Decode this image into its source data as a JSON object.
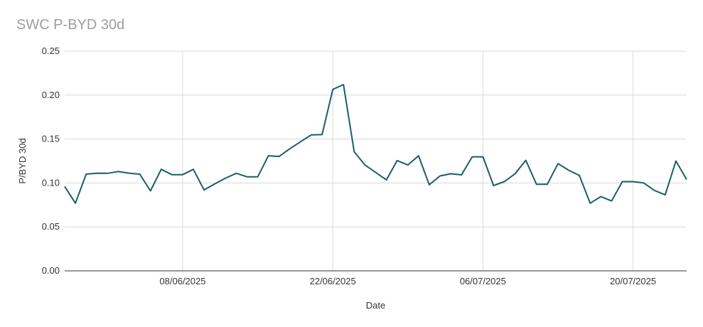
{
  "chart_data": {
    "type": "line",
    "title": "SWC P-BYD 30d",
    "xlabel": "Date",
    "ylabel": "P/BYD 30d",
    "ylim": [
      0,
      0.25
    ],
    "yticks": [
      "0.00",
      "0.05",
      "0.10",
      "0.15",
      "0.20",
      "0.25"
    ],
    "xticks": [
      "08/06/2025",
      "22/06/2025",
      "06/07/2025",
      "20/07/2025"
    ],
    "grid": true,
    "line_color": "#1a5e66",
    "series": [
      {
        "x": [
          "2025-05-28",
          "2025-05-29",
          "2025-05-30",
          "2025-05-31",
          "2025-06-01",
          "2025-06-02",
          "2025-06-03",
          "2025-06-04",
          "2025-06-05",
          "2025-06-06",
          "2025-06-07",
          "2025-06-08",
          "2025-06-09",
          "2025-06-10",
          "2025-06-11",
          "2025-06-12",
          "2025-06-13",
          "2025-06-14",
          "2025-06-15",
          "2025-06-16",
          "2025-06-17",
          "2025-06-18",
          "2025-06-19",
          "2025-06-20",
          "2025-06-21",
          "2025-06-22",
          "2025-06-23",
          "2025-06-24",
          "2025-06-25",
          "2025-06-27",
          "2025-06-28",
          "2025-06-29",
          "2025-06-30",
          "2025-07-01",
          "2025-07-02",
          "2025-07-03",
          "2025-07-04",
          "2025-07-05",
          "2025-07-06",
          "2025-07-07",
          "2025-07-08",
          "2025-07-09",
          "2025-07-10",
          "2025-07-11",
          "2025-07-12",
          "2025-07-13",
          "2025-07-14",
          "2025-07-15",
          "2025-07-16",
          "2025-07-17",
          "2025-07-18",
          "2025-07-19",
          "2025-07-20",
          "2025-07-21",
          "2025-07-22",
          "2025-07-23",
          "2025-07-24",
          "2025-07-25"
        ],
        "values": [
          0.096,
          0.077,
          0.11,
          0.1112,
          0.111,
          0.113,
          0.1112,
          0.11,
          0.091,
          0.1155,
          0.1095,
          0.1095,
          0.1155,
          0.092,
          0.099,
          0.1055,
          0.111,
          0.107,
          0.107,
          0.131,
          0.1302,
          0.139,
          0.147,
          0.1548,
          0.155,
          0.2065,
          0.212,
          0.1355,
          0.1205,
          0.1035,
          0.1255,
          0.1205,
          0.131,
          0.098,
          0.108,
          0.1105,
          0.1092,
          0.1298,
          0.1298,
          0.097,
          0.1015,
          0.1105,
          0.1258,
          0.0985,
          0.0985,
          0.122,
          0.1145,
          0.1085,
          0.077,
          0.0845,
          0.0795,
          0.1015,
          0.1015,
          0.1,
          0.0915,
          0.0865,
          0.125,
          0.104
        ]
      }
    ]
  }
}
